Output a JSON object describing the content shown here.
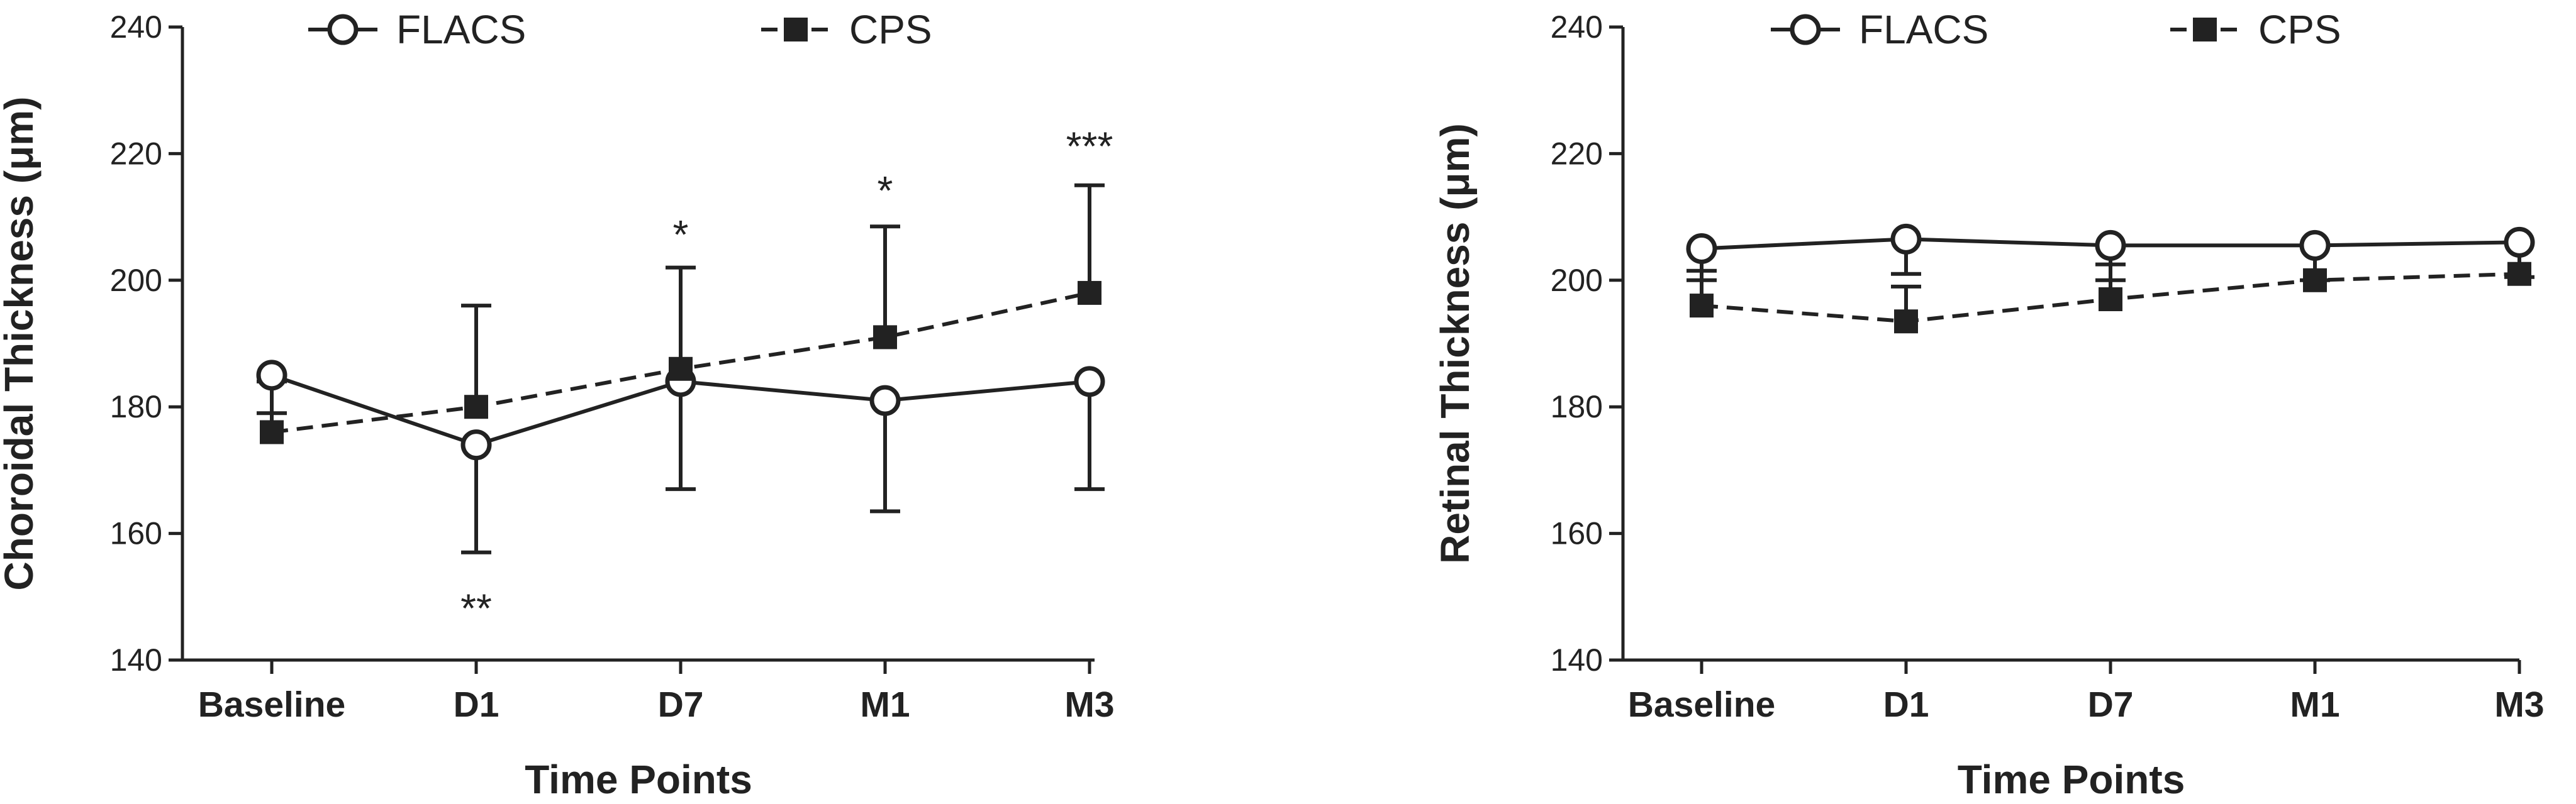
{
  "chart_data": [
    {
      "type": "line",
      "categories": [
        "Baseline",
        "D1",
        "D7",
        "M1",
        "M3"
      ],
      "xlabel": "Time Points",
      "ylabel": "Choroidal Thickness (μm)",
      "ylim": [
        140,
        240
      ],
      "yticks": [
        140,
        160,
        180,
        200,
        220,
        240
      ],
      "grid": false,
      "legend_position": "top",
      "series": [
        {
          "name": "FLACS",
          "marker": "open-circle",
          "line_style": "solid",
          "values": [
            185,
            174,
            184,
            181,
            184
          ],
          "error": [
            6,
            17,
            17,
            17.5,
            17
          ]
        },
        {
          "name": "CPS",
          "marker": "filled-square",
          "line_style": "dashed",
          "values": [
            176,
            180,
            186,
            191,
            198
          ],
          "error": [
            8,
            16,
            16,
            17.5,
            17
          ]
        }
      ],
      "annotations": [
        {
          "category": "D1",
          "text": "**",
          "value": 149
        },
        {
          "category": "D7",
          "text": "*",
          "value": 208
        },
        {
          "category": "M1",
          "text": "*",
          "value": 215
        },
        {
          "category": "M3",
          "text": "***",
          "value": 222
        }
      ]
    },
    {
      "type": "line",
      "categories": [
        "Baseline",
        "D1",
        "D7",
        "M1",
        "M3"
      ],
      "xlabel": "Time Points",
      "ylabel": "Retinal Thickness (μm)",
      "ylim": [
        140,
        240
      ],
      "yticks": [
        140,
        160,
        180,
        200,
        220,
        240
      ],
      "grid": false,
      "legend_position": "top",
      "series": [
        {
          "name": "FLACS",
          "marker": "open-circle",
          "line_style": "solid",
          "values": [
            205,
            206.5,
            205.5,
            205.5,
            206
          ],
          "error": [
            5,
            5.5,
            5.5,
            5.5,
            5.5
          ]
        },
        {
          "name": "CPS",
          "marker": "filled-square",
          "line_style": "dashed",
          "values": [
            196,
            193.5,
            197,
            200,
            201
          ],
          "error": [
            5.5,
            5.5,
            5.5,
            5.5,
            5
          ]
        }
      ],
      "annotations": []
    }
  ]
}
